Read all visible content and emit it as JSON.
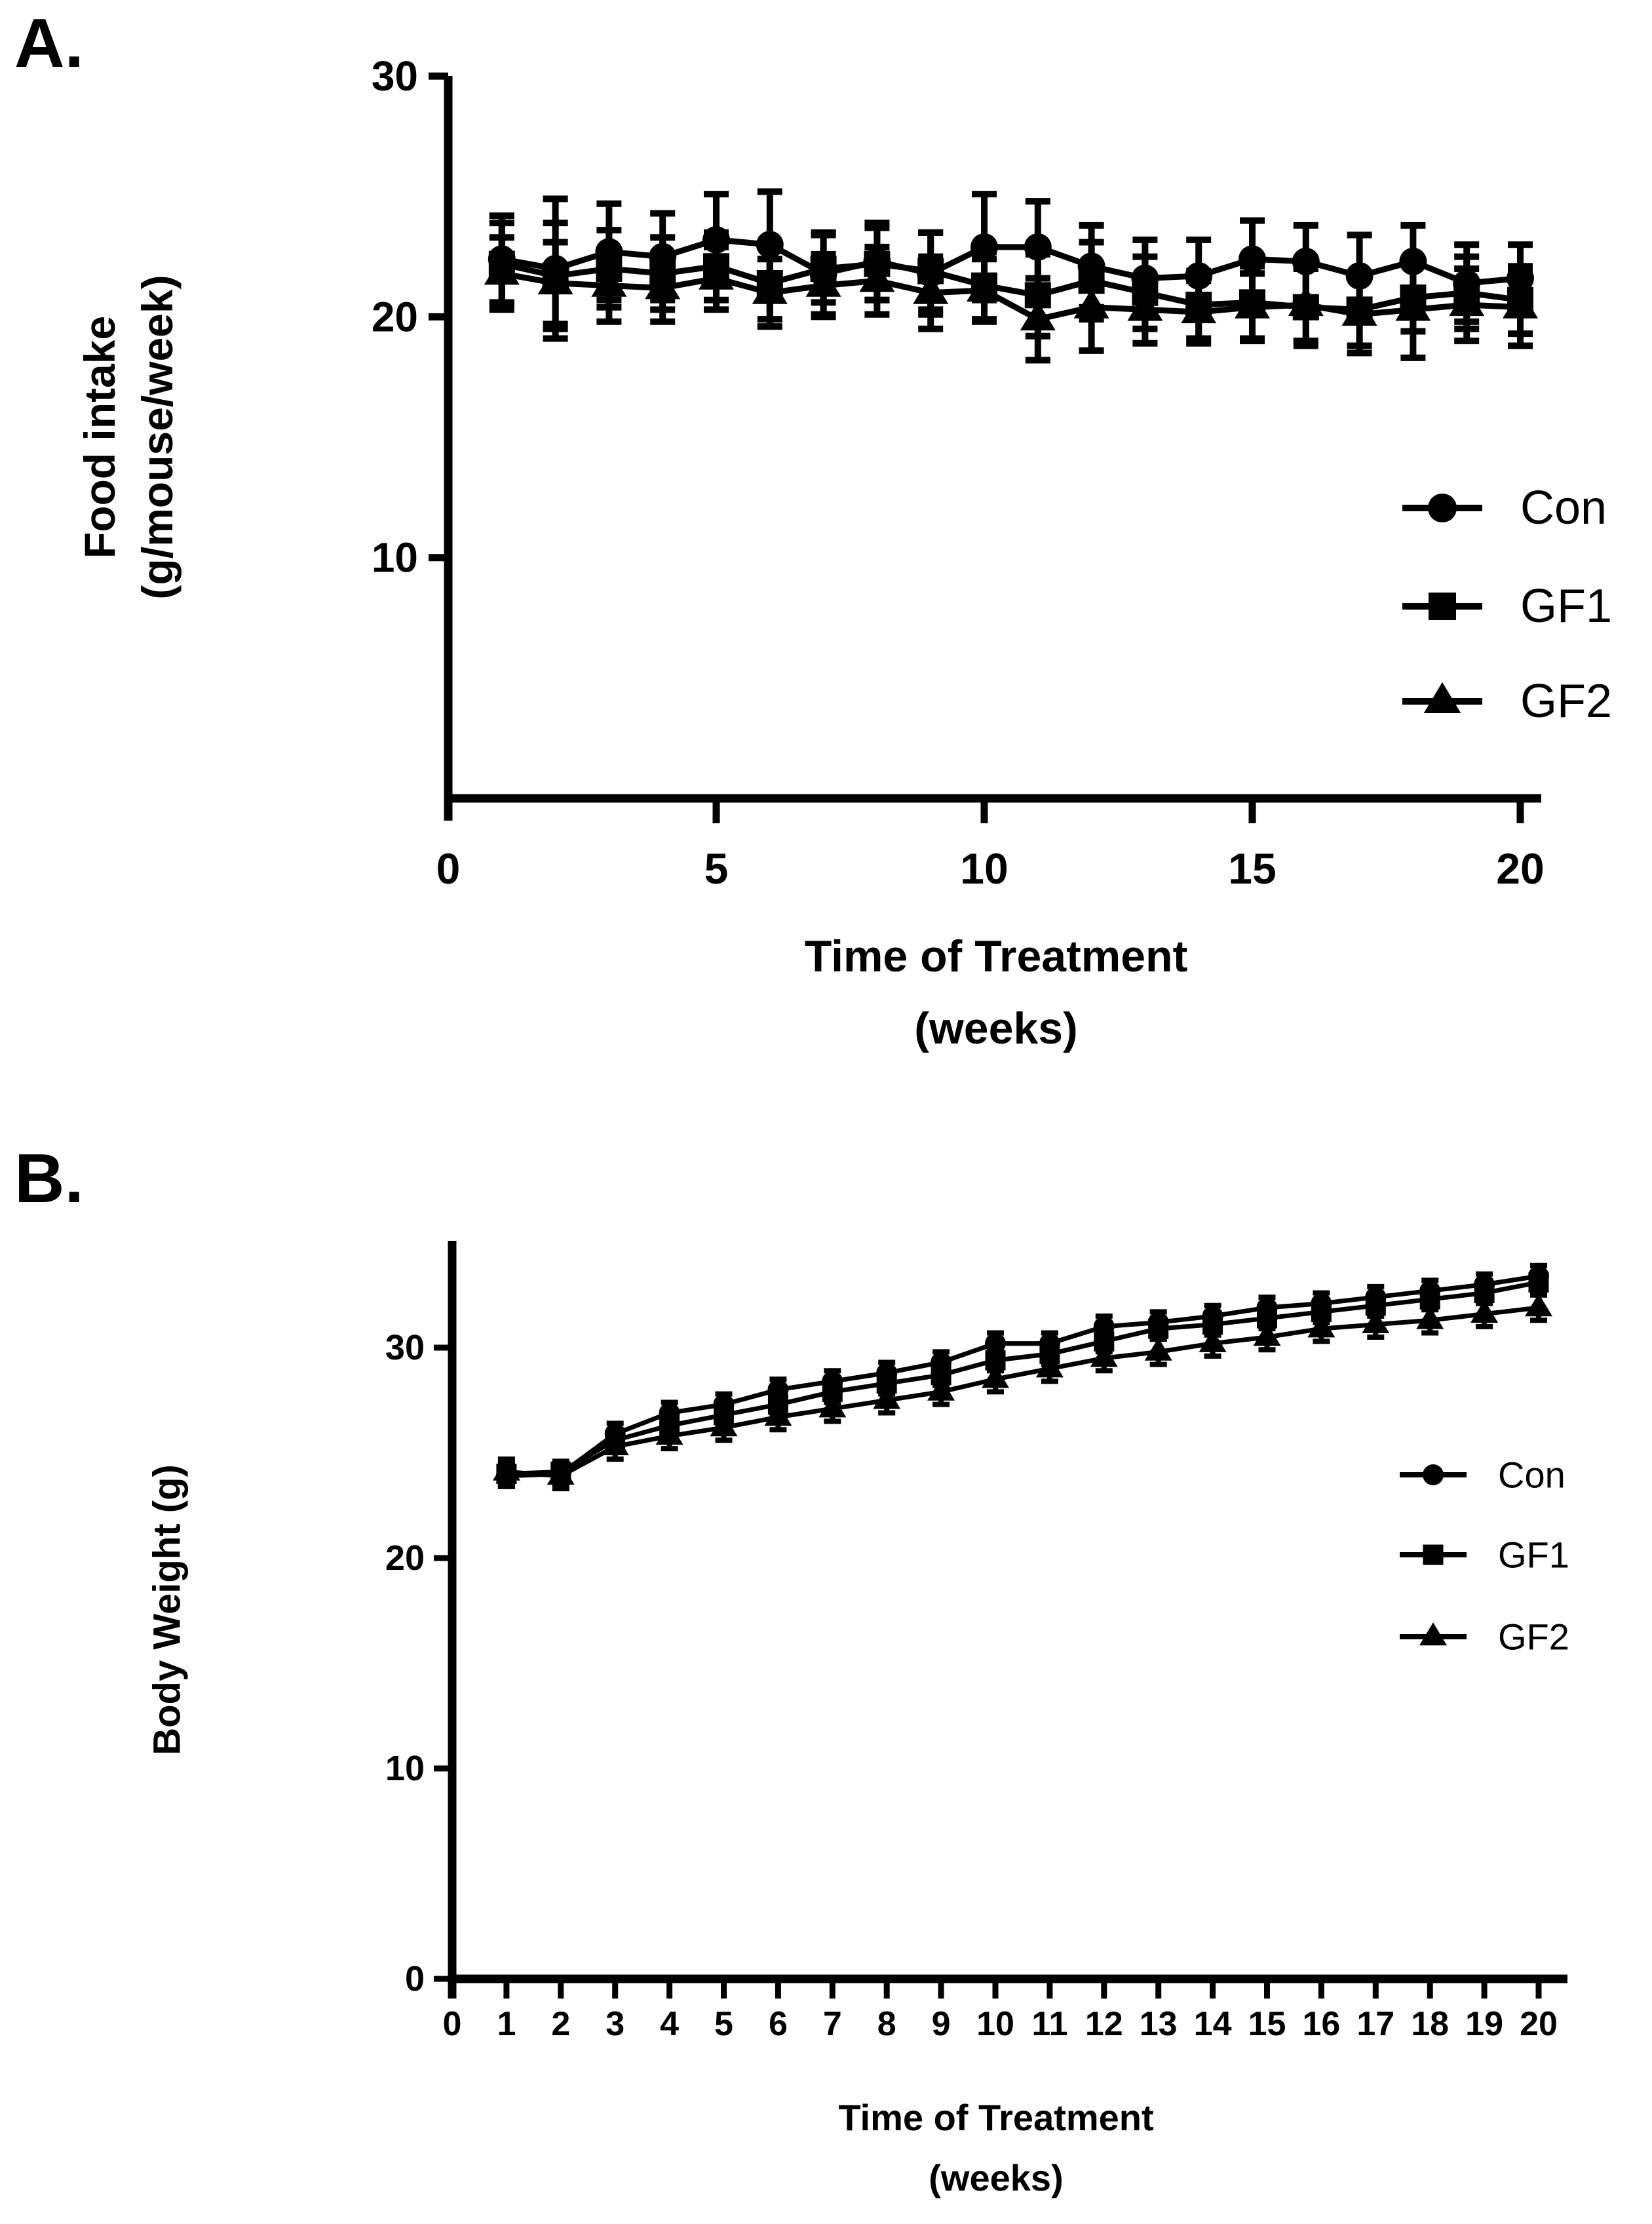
{
  "figure": {
    "background": "#ffffff",
    "ink_color": "#000000"
  },
  "chart_data": [
    {
      "type": "line",
      "panel_label": "A.",
      "title": "",
      "xlabel_lines": [
        "Time of Treatment",
        "(weeks)"
      ],
      "ylabel_lines": [
        "Food intake",
        "(g/mouse/week)"
      ],
      "xlim": [
        0,
        20.6
      ],
      "ylim": [
        0,
        30
      ],
      "xticks": [
        0,
        5,
        10,
        15,
        20
      ],
      "yticks": [
        10,
        20,
        30
      ],
      "grid": false,
      "error_bars": true,
      "legend_position": "right-middle",
      "x": [
        1,
        2,
        3,
        4,
        5,
        6,
        7,
        8,
        9,
        10,
        11,
        12,
        13,
        14,
        15,
        16,
        17,
        18,
        19,
        20
      ],
      "series": [
        {
          "name": "Con",
          "marker": "circle",
          "values": [
            22.4,
            22.0,
            22.7,
            22.5,
            23.2,
            23.0,
            21.8,
            22.3,
            21.8,
            22.9,
            22.9,
            22.1,
            21.6,
            21.7,
            22.4,
            22.3,
            21.7,
            22.3,
            21.4,
            21.6
          ],
          "errors": [
            1.8,
            2.9,
            2.0,
            1.8,
            1.9,
            2.2,
            1.7,
            1.6,
            1.7,
            2.2,
            1.9,
            1.7,
            1.6,
            1.5,
            1.6,
            1.5,
            1.7,
            1.5,
            1.6,
            1.4
          ]
        },
        {
          "name": "GF1",
          "marker": "square",
          "values": [
            22.2,
            21.7,
            22.0,
            21.8,
            22.1,
            21.4,
            22.0,
            22.2,
            21.9,
            21.3,
            20.9,
            21.5,
            21.0,
            20.5,
            20.6,
            20.4,
            20.3,
            20.8,
            21.0,
            20.7
          ],
          "errors": [
            1.7,
            2.2,
            1.6,
            1.5,
            1.4,
            1.5,
            1.4,
            1.5,
            1.6,
            1.4,
            1.7,
            1.6,
            1.5,
            1.4,
            1.5,
            1.6,
            1.5,
            1.4,
            1.5,
            1.4
          ]
        },
        {
          "name": "GF2",
          "marker": "triangle",
          "values": [
            21.8,
            21.4,
            21.3,
            21.2,
            21.6,
            21.0,
            21.3,
            21.5,
            21.0,
            21.1,
            19.9,
            20.4,
            20.3,
            20.2,
            20.4,
            20.5,
            20.1,
            20.3,
            20.5,
            20.4
          ],
          "errors": [
            1.5,
            1.7,
            1.5,
            1.4,
            1.3,
            1.4,
            1.3,
            1.4,
            1.5,
            1.3,
            1.7,
            1.8,
            1.4,
            1.3,
            1.4,
            1.5,
            1.6,
            2.0,
            1.5,
            1.6
          ]
        }
      ]
    },
    {
      "type": "line",
      "panel_label": "B.",
      "title": "",
      "xlabel_lines": [
        "Time of Treatment",
        "(weeks)"
      ],
      "ylabel_lines": [
        "Body Weight (g)"
      ],
      "xlim": [
        0,
        20.5
      ],
      "ylim": [
        0,
        35
      ],
      "xticks": [
        0,
        1,
        2,
        3,
        4,
        5,
        6,
        7,
        8,
        9,
        10,
        11,
        12,
        13,
        14,
        15,
        16,
        17,
        18,
        19,
        20
      ],
      "yticks": [
        0,
        10,
        20,
        30
      ],
      "grid": false,
      "error_bars": true,
      "legend_position": "right-middle",
      "x": [
        1,
        2,
        3,
        4,
        5,
        6,
        7,
        8,
        9,
        10,
        11,
        12,
        13,
        14,
        15,
        16,
        17,
        18,
        19,
        20
      ],
      "series": [
        {
          "name": "Con",
          "marker": "circle",
          "values": [
            23.9,
            24.0,
            25.9,
            26.9,
            27.3,
            28.0,
            28.4,
            28.8,
            29.3,
            30.2,
            30.2,
            31.0,
            31.2,
            31.5,
            31.9,
            32.1,
            32.4,
            32.7,
            33.0,
            33.4
          ],
          "errors": [
            0.5,
            0.5,
            0.5,
            0.5,
            0.5,
            0.5,
            0.5,
            0.5,
            0.5,
            0.5,
            0.5,
            0.5,
            0.5,
            0.5,
            0.5,
            0.5,
            0.5,
            0.5,
            0.5,
            0.5
          ]
        },
        {
          "name": "GF1",
          "marker": "square",
          "values": [
            24.0,
            24.1,
            25.6,
            26.3,
            26.8,
            27.3,
            27.9,
            28.3,
            28.7,
            29.4,
            29.7,
            30.3,
            30.9,
            31.1,
            31.4,
            31.7,
            32.0,
            32.3,
            32.6,
            33.1
          ],
          "errors": [
            0.5,
            0.5,
            0.5,
            0.5,
            0.5,
            0.5,
            0.5,
            0.5,
            0.5,
            0.5,
            0.5,
            0.5,
            0.5,
            0.5,
            0.5,
            0.5,
            0.5,
            0.5,
            0.5,
            0.5
          ]
        },
        {
          "name": "GF2",
          "marker": "triangle",
          "values": [
            24.1,
            23.9,
            25.3,
            25.8,
            26.2,
            26.7,
            27.1,
            27.5,
            27.9,
            28.5,
            29.0,
            29.5,
            29.8,
            30.2,
            30.5,
            30.9,
            31.1,
            31.3,
            31.6,
            31.9
          ],
          "errors": [
            0.6,
            0.6,
            0.6,
            0.6,
            0.6,
            0.6,
            0.6,
            0.6,
            0.6,
            0.6,
            0.6,
            0.6,
            0.6,
            0.6,
            0.6,
            0.6,
            0.6,
            0.6,
            0.6,
            0.6
          ]
        }
      ]
    }
  ]
}
